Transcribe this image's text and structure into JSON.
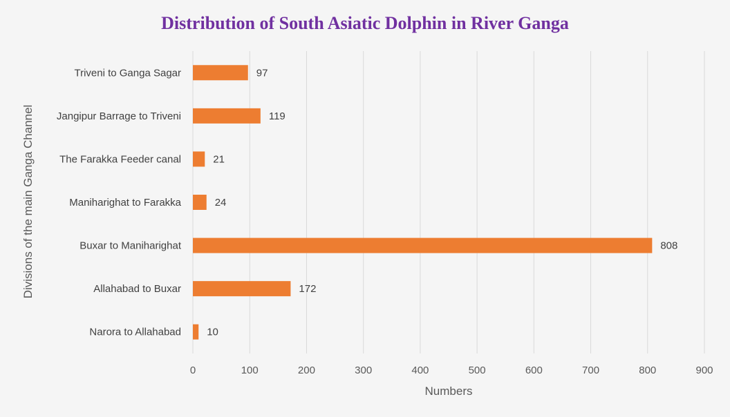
{
  "chart_data": {
    "type": "bar",
    "orientation": "horizontal",
    "title": "Distribution of South Asiatic Dolphin in River Ganga",
    "xlabel": "Numbers",
    "ylabel": "Divisions of the main Ganga Channel",
    "categories": [
      "Narora to Allahabad",
      "Allahabad to Buxar",
      "Buxar to Maniharighat",
      "Maniharighat to Farakka",
      "The Farakka Feeder canal",
      "Jangipur Barrage to Triveni",
      "Triveni to Ganga Sagar"
    ],
    "values": [
      10,
      172,
      808,
      24,
      21,
      119,
      97
    ],
    "xlim": [
      0,
      900
    ],
    "xticks": [
      "0",
      "100",
      "200",
      "300",
      "400",
      "500",
      "600",
      "700",
      "800",
      "900"
    ],
    "grid": "vertical",
    "legend": "none",
    "data_labels": true
  },
  "colors": {
    "bar": "#ed7d31",
    "title": "#7030a0",
    "grid": "#d9d9d9",
    "text": "#595959"
  }
}
